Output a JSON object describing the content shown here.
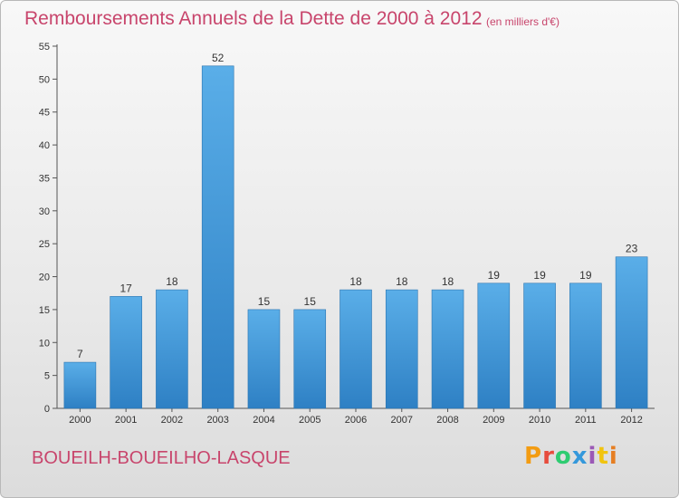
{
  "header": {
    "title": "Remboursements Annuels de la Dette de 2000 à 2012",
    "unit": "(en milliers d'€)"
  },
  "footer": {
    "commune": "BOUEILH-BOUEILHO-LASQUE",
    "logo_text": "Proxiti",
    "logo_colors": [
      "#f39c12",
      "#e74c3c",
      "#2ecc71",
      "#3498db",
      "#9b59b6",
      "#f1c40f",
      "#e67e22"
    ]
  },
  "colors": {
    "bar_light": "#5aaee8",
    "bar_dark": "#2e80c4",
    "text": "#c8456c"
  },
  "chart_data": {
    "type": "bar",
    "title": "Remboursements Annuels de la Dette de 2000 à 2012",
    "xlabel": "",
    "ylabel": "",
    "categories": [
      "2000",
      "2001",
      "2002",
      "2003",
      "2004",
      "2005",
      "2006",
      "2007",
      "2008",
      "2009",
      "2010",
      "2011",
      "2012"
    ],
    "values": [
      7,
      17,
      18,
      52,
      15,
      15,
      18,
      18,
      18,
      19,
      19,
      19,
      23
    ],
    "ylim": [
      0,
      55
    ],
    "yticks": [
      0,
      5,
      10,
      15,
      20,
      25,
      30,
      35,
      40,
      45,
      50,
      55
    ],
    "grid": false,
    "legend": "none"
  }
}
